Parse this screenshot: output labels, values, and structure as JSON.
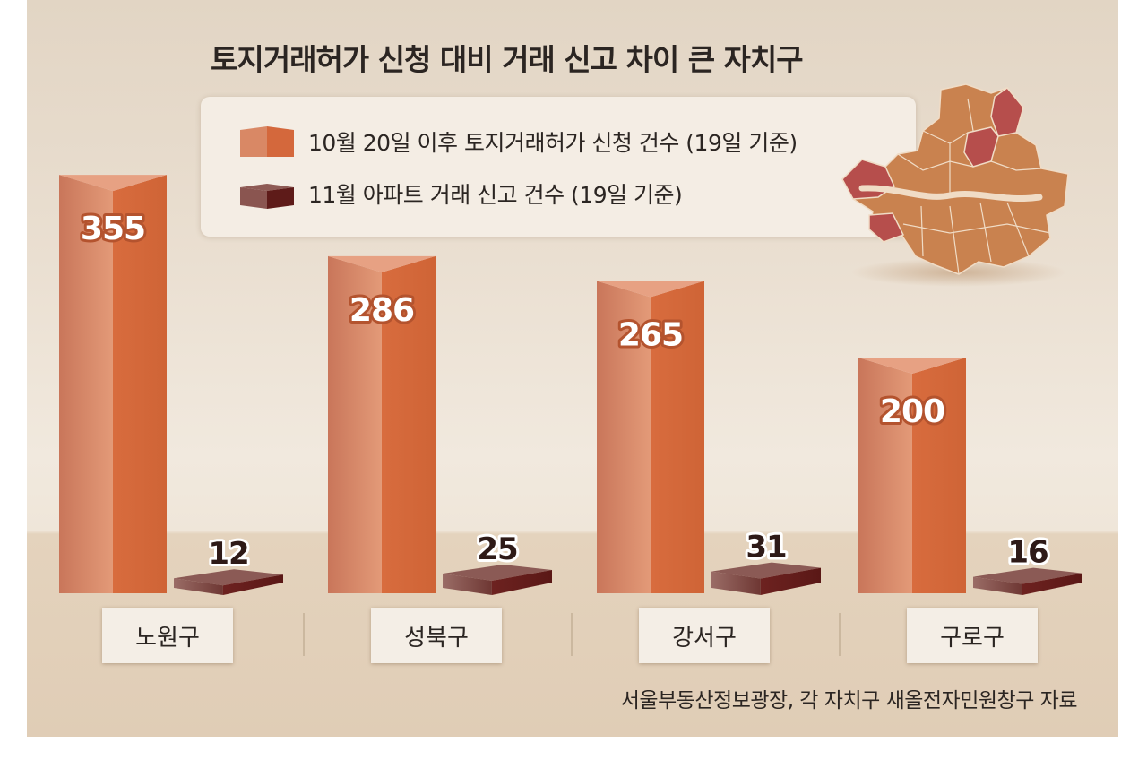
{
  "chart_data": {
    "type": "bar",
    "title": "토지거래허가 신청 대비 거래 신고 차이 큰 자치구",
    "categories": [
      "노원구",
      "성북구",
      "강서구",
      "구로구"
    ],
    "series": [
      {
        "name": "10월 20일 이후 토지거래허가 신청 건수 (19일 기준)",
        "values": [
          355,
          286,
          265,
          200
        ]
      },
      {
        "name": "11월 아파트 거래 신고 건수 (19일 기준)",
        "values": [
          12,
          25,
          31,
          16
        ]
      }
    ],
    "colors": {
      "series1": "#d86f45",
      "series2": "#7a2a26"
    },
    "source": "서울부동산정보광장, 각 자치구 새올전자민원창구 자료"
  }
}
